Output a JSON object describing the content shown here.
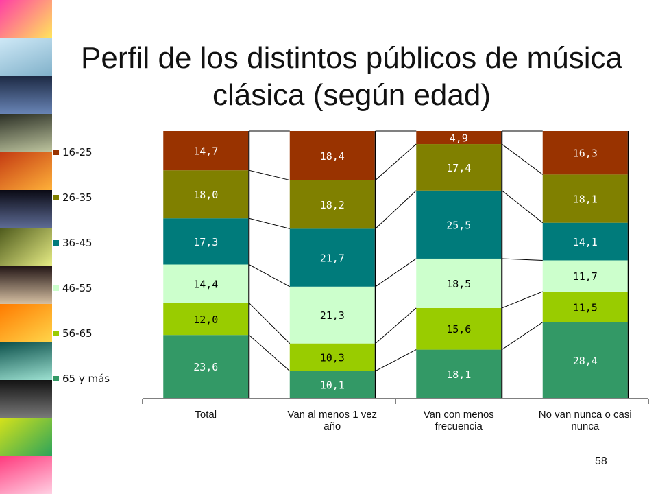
{
  "slide": {
    "title_line1": "Perfil de los distintos públicos de música",
    "title_line2": "clásica (según edad)",
    "page_number": "58"
  },
  "chart_data": {
    "type": "bar",
    "stacked": true,
    "normalized": true,
    "categories": [
      "Total",
      "Van al menos 1 vez año",
      "Van con menos frecuencia",
      "No van nunca o casi nunca"
    ],
    "category_lines": [
      [
        "Total"
      ],
      [
        "Van al menos 1 vez",
        "año"
      ],
      [
        "Van con menos",
        "frecuencia"
      ],
      [
        "No van nunca o casi",
        "nunca"
      ]
    ],
    "series": [
      {
        "name": "65 y más",
        "color": "#339966",
        "values": [
          23.6,
          10.1,
          18.1,
          28.4
        ]
      },
      {
        "name": "56-65",
        "color": "#99CC00",
        "values": [
          12.0,
          10.3,
          15.6,
          11.5
        ]
      },
      {
        "name": "46-55",
        "color": "#CCFFCC",
        "values": [
          14.4,
          21.3,
          18.5,
          11.7
        ]
      },
      {
        "name": "36-45",
        "color": "#007B7B",
        "values": [
          17.3,
          21.7,
          25.5,
          14.1
        ]
      },
      {
        "name": "26-35",
        "color": "#808000",
        "values": [
          18.0,
          18.2,
          17.4,
          18.1
        ]
      },
      {
        "name": "16-25",
        "color": "#993300",
        "values": [
          14.7,
          18.4,
          4.9,
          16.3
        ]
      }
    ],
    "labels": [
      [
        "23,6",
        "10,1",
        "18,1",
        "28,4"
      ],
      [
        "12,0",
        "10,3",
        "15,6",
        "11,5"
      ],
      [
        "14,4",
        "21,3",
        "18,5",
        "11,7"
      ],
      [
        "17,3",
        "21,7",
        "25,5",
        "14,1"
      ],
      [
        "18,0",
        "18,2",
        "17,4",
        "18,1"
      ],
      [
        "14,7",
        "18,4",
        "4,9",
        "16,3"
      ]
    ],
    "legend_order": [
      "16-25",
      "26-35",
      "36-45",
      "46-55",
      "56-65",
      "65 y más"
    ],
    "legend_placement": "left",
    "ylim": [
      0,
      100
    ],
    "series_lines": true,
    "grid": false
  }
}
